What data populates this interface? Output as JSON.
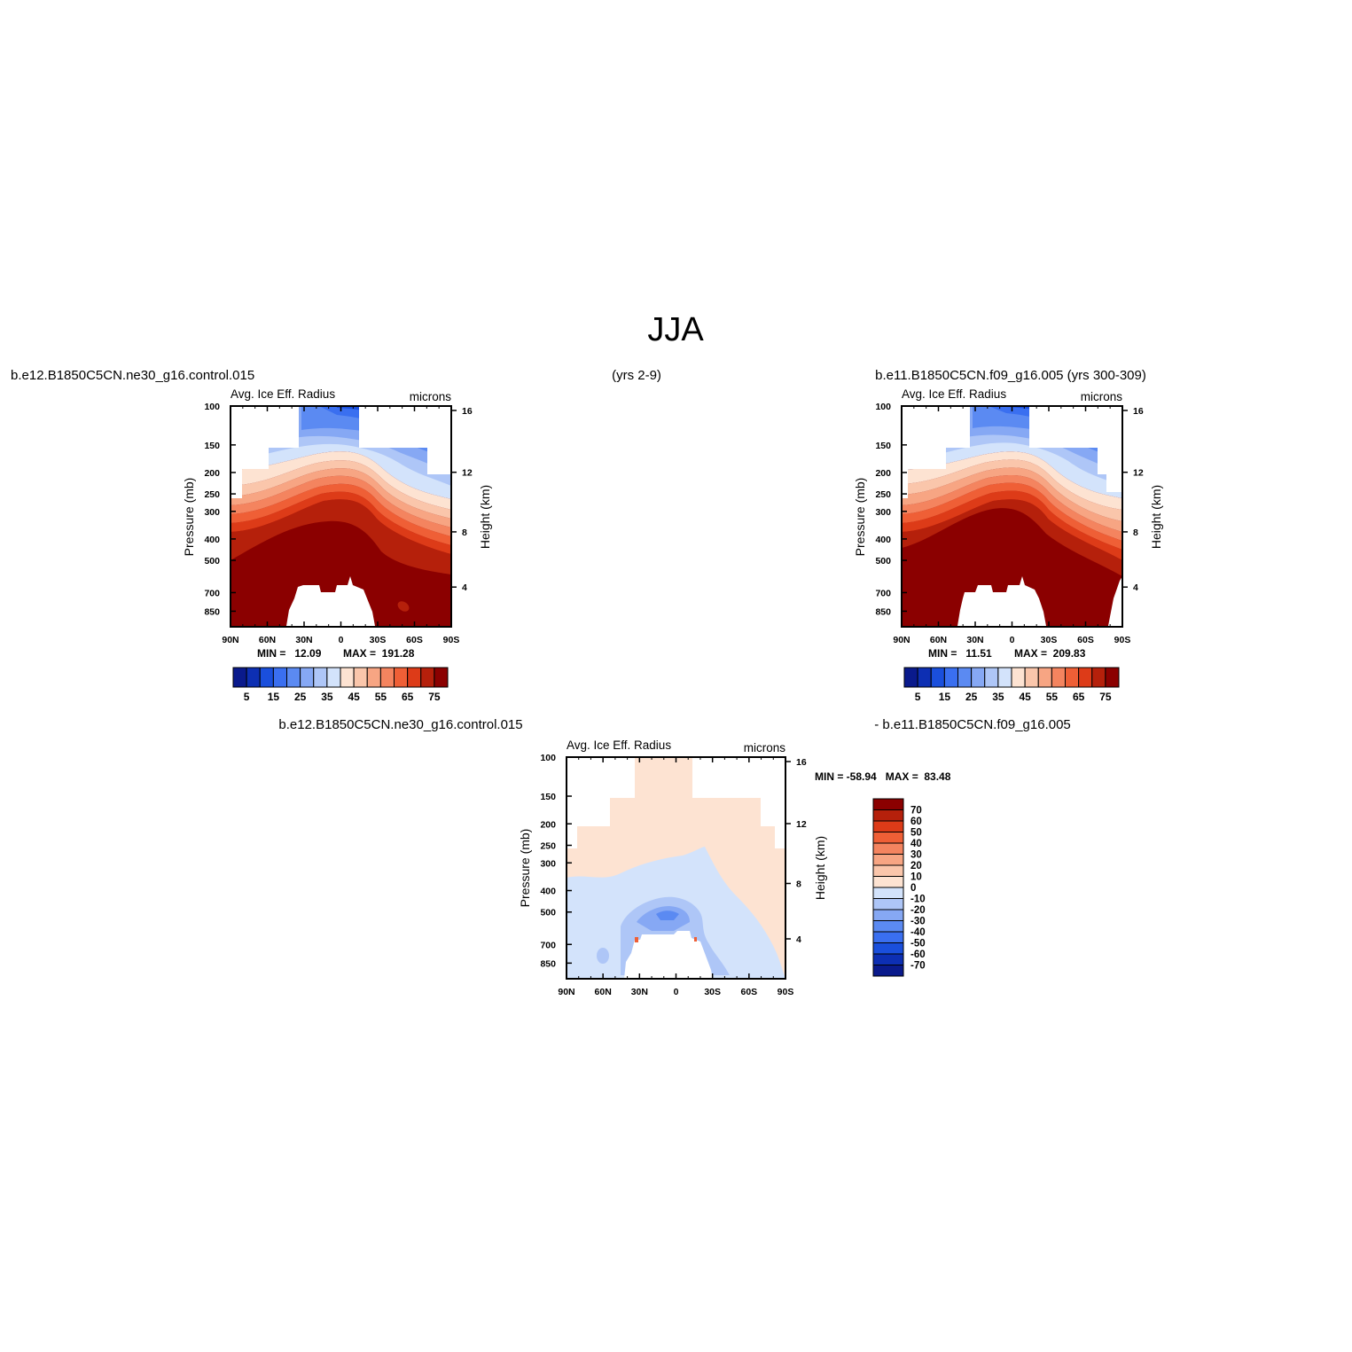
{
  "title": "JJA",
  "header": {
    "case1": "b.e12.B1850C5CN.ne30_g16.control.015",
    "case1_years": "(yrs 2-9)",
    "case2": "b.e11.B1850C5CN.f09_g16.005 (yrs 300-309)",
    "diff_left": "b.e12.B1850C5CN.ne30_g16.control.015",
    "diff_right": "- b.e11.B1850C5CN.f09_g16.005"
  },
  "chart_data": [
    {
      "type": "heatmap",
      "id": "case1",
      "left_string": "Avg. Ice Eff. Radius",
      "right_string": "microns",
      "xlabel": "",
      "ylabel": "Pressure (mb)",
      "ylabel_right": "Height (km)",
      "x_ticks": [
        "90N",
        "60N",
        "30N",
        "0",
        "30S",
        "60S",
        "90S"
      ],
      "y_ticks": [
        100,
        150,
        200,
        250,
        300,
        400,
        500,
        700,
        850
      ],
      "y_ticks_right": [
        16,
        12,
        8,
        4
      ],
      "ylim_mb": [
        100,
        1000
      ],
      "y_scale": "log",
      "min_label": "MIN =   12.09",
      "max_label": "MAX =  191.28",
      "min": 12.09,
      "max": 191.28,
      "colorbar_levels": [
        5,
        10,
        15,
        20,
        25,
        30,
        35,
        40,
        45,
        50,
        55,
        60,
        65,
        70,
        75
      ],
      "colorbar_labels": [
        "5",
        "15",
        "25",
        "35",
        "45",
        "55",
        "65",
        "75"
      ],
      "colorbar_orientation": "horizontal"
    },
    {
      "type": "heatmap",
      "id": "case2",
      "left_string": "Avg. Ice Eff. Radius",
      "right_string": "microns",
      "xlabel": "",
      "ylabel": "Pressure (mb)",
      "ylabel_right": "Height (km)",
      "x_ticks": [
        "90N",
        "60N",
        "30N",
        "0",
        "30S",
        "60S",
        "90S"
      ],
      "y_ticks": [
        100,
        150,
        200,
        250,
        300,
        400,
        500,
        700,
        850
      ],
      "y_ticks_right": [
        16,
        12,
        8,
        4
      ],
      "ylim_mb": [
        100,
        1000
      ],
      "y_scale": "log",
      "min_label": "MIN =   11.51",
      "max_label": "MAX =  209.83",
      "min": 11.51,
      "max": 209.83,
      "colorbar_levels": [
        5,
        10,
        15,
        20,
        25,
        30,
        35,
        40,
        45,
        50,
        55,
        60,
        65,
        70,
        75
      ],
      "colorbar_labels": [
        "5",
        "15",
        "25",
        "35",
        "45",
        "55",
        "65",
        "75"
      ],
      "colorbar_orientation": "horizontal"
    },
    {
      "type": "heatmap",
      "id": "difference",
      "left_string": "Avg. Ice Eff. Radius",
      "right_string": "microns",
      "xlabel": "",
      "ylabel": "Pressure (mb)",
      "ylabel_right": "Height (km)",
      "x_ticks": [
        "90N",
        "60N",
        "30N",
        "0",
        "30S",
        "60S",
        "90S"
      ],
      "y_ticks": [
        100,
        150,
        200,
        250,
        300,
        400,
        500,
        700,
        850
      ],
      "y_ticks_right": [
        16,
        12,
        8,
        4
      ],
      "ylim_mb": [
        100,
        1000
      ],
      "y_scale": "log",
      "minmax_label": "MIN = -58.94   MAX =  83.48",
      "min": -58.94,
      "max": 83.48,
      "colorbar_labels": [
        "70",
        "60",
        "50",
        "40",
        "30",
        "20",
        "10",
        "0",
        "-10",
        "-20",
        "-30",
        "-40",
        "-50",
        "-60",
        "-70"
      ],
      "colorbar_orientation": "vertical"
    }
  ],
  "colors": {
    "abs_palette": [
      "#0a1a8c",
      "#0d2fb3",
      "#1a4fdc",
      "#3a6ff0",
      "#5b8af2",
      "#86a8f4",
      "#aec6f7",
      "#d3e3fb",
      "#fde3d2",
      "#fac6ab",
      "#f7a583",
      "#f4845f",
      "#ef5f36",
      "#dd3b18",
      "#b5200b",
      "#8b0000"
    ],
    "diff_palette": [
      "#8b0000",
      "#b5200b",
      "#dd3b18",
      "#ef5f36",
      "#f4845f",
      "#f7a583",
      "#fac6ab",
      "#fde3d2",
      "#d3e3fb",
      "#aec6f7",
      "#86a8f4",
      "#5b8af2",
      "#3a6ff0",
      "#1a4fdc",
      "#0d2fb3",
      "#0a1a8c"
    ]
  }
}
